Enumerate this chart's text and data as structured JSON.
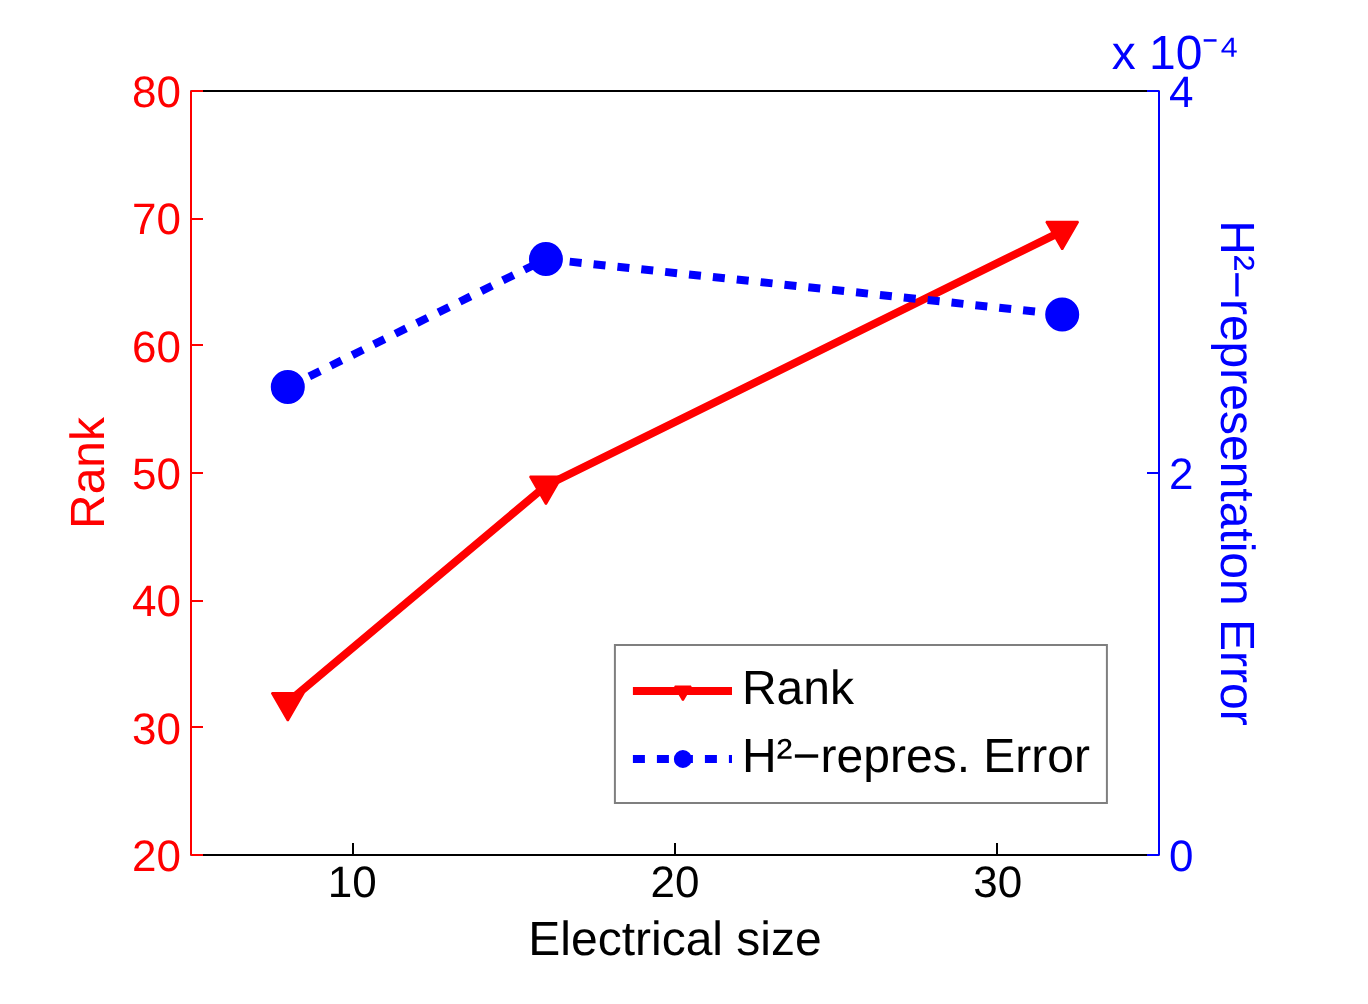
{
  "chart_data": {
    "type": "line",
    "xlabel": "Electrical size",
    "ylabel": "Rank",
    "y2label": "H²−representation Error",
    "x": [
      8,
      16,
      32
    ],
    "series": [
      {
        "name": "Rank",
        "color": "#ff0000",
        "values": [
          32,
          49,
          69
        ],
        "marker": "triangle",
        "line_style": "solid"
      },
      {
        "name": "H²−repres. Error",
        "color": "#0000ff",
        "values": [
          2.45,
          3.12,
          2.83
        ],
        "marker": "circle",
        "line_style": "dashed",
        "axis": "y2"
      }
    ],
    "xlim": [
      5,
      35
    ],
    "xticks": [
      10,
      20,
      30
    ],
    "ylim": [
      20,
      80
    ],
    "yticks": [
      20,
      30,
      40,
      50,
      60,
      70,
      80
    ],
    "y2lim": [
      0,
      4
    ],
    "y2ticks": [
      0,
      2,
      4
    ],
    "annotations": [
      "x 10⁻⁴"
    ],
    "grid": false,
    "legend": "bottom right"
  }
}
